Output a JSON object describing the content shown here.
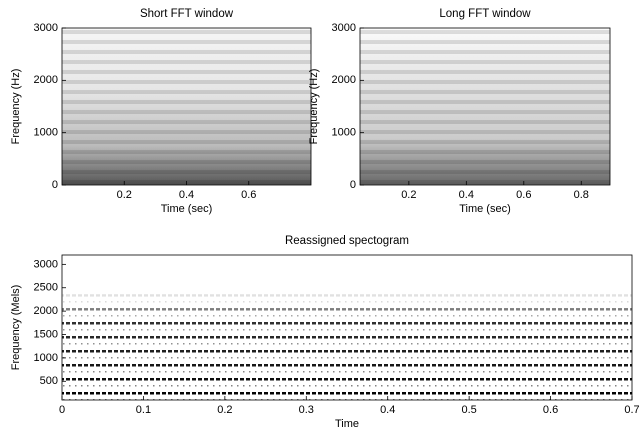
{
  "chart_data": [
    {
      "type": "spectrogram",
      "title": "Short FFT window",
      "x_label": "Time (sec)",
      "y_label": "Frequency (Hz)",
      "xlim": [
        0,
        0.8
      ],
      "xticks": [
        0.2,
        0.4,
        0.6
      ],
      "ylim": [
        0,
        3000
      ],
      "yticks": [
        0,
        1000,
        2000,
        3000
      ]
    },
    {
      "type": "spectrogram",
      "title": "Long FFT window",
      "x_label": "Time (sec)",
      "y_label": "Frequency (Hz)",
      "xlim": [
        0.03,
        0.9
      ],
      "xticks": [
        0.2,
        0.4,
        0.6,
        0.8
      ],
      "ylim": [
        0,
        3000
      ],
      "yticks": [
        0,
        1000,
        2000,
        3000
      ]
    },
    {
      "type": "reassigned",
      "title": "Reassigned spectogram",
      "x_label": "Time",
      "y_label": "Frequency (Mels)",
      "xlim": [
        0,
        0.7
      ],
      "xticks": [
        0,
        0.1,
        0.2,
        0.3,
        0.4,
        0.5,
        0.6,
        0.7
      ],
      "ylim": [
        100,
        3200
      ],
      "yticks": [
        500,
        1000,
        1500,
        2000,
        2500,
        3000
      ]
    }
  ]
}
